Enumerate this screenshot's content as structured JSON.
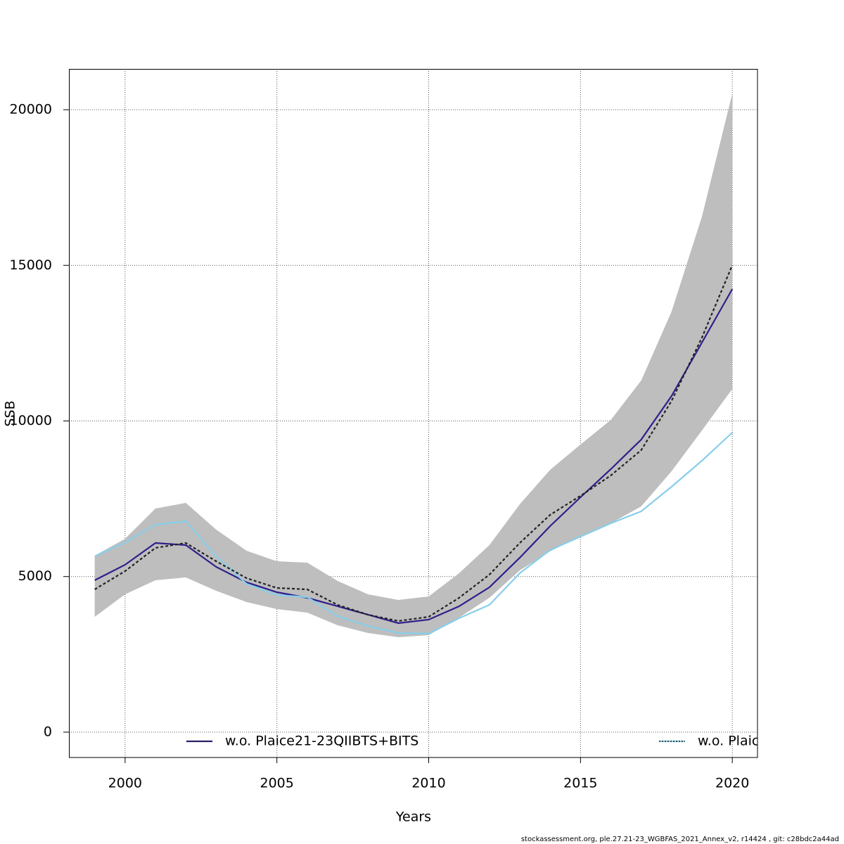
{
  "chart_data": {
    "type": "line",
    "x_label": "Years",
    "y_label": "SSB",
    "footer": "stockassessment.org, ple.27.21-23_WGBFAS_2021_Annex_v2, r14424 , git: c28bdc2a44ad",
    "x": [
      1999,
      2000,
      2001,
      2002,
      2003,
      2004,
      2005,
      2006,
      2007,
      2008,
      2009,
      2010,
      2011,
      2012,
      2013,
      2014,
      2015,
      2016,
      2017,
      2018,
      2019,
      2020
    ],
    "xlim": [
      1998.15,
      2020.83
    ],
    "xticks": [
      2000,
      2005,
      2010,
      2015,
      2020
    ],
    "ylim": [
      -814,
      21311
    ],
    "yticks": [
      0,
      5000,
      10000,
      15000,
      20000
    ],
    "grid": true,
    "band": {
      "color": "#bebebe",
      "upper": [
        5672,
        6215,
        7186,
        7367,
        6508,
        5830,
        5491,
        5446,
        4859,
        4429,
        4249,
        4362,
        5107,
        6011,
        7322,
        8429,
        9243,
        10034,
        11299,
        13514,
        16565,
        20520
      ],
      "lower": [
        3706,
        4429,
        4881,
        4972,
        4542,
        4181,
        3955,
        3842,
        3435,
        3186,
        3051,
        3119,
        3684,
        4316,
        5198,
        5808,
        6305,
        6712,
        7254,
        8384,
        9695,
        11028
      ]
    },
    "base": {
      "color": "#222222",
      "dash": true,
      "values": [
        4588,
        5175,
        5921,
        6079,
        5491,
        4949,
        4633,
        4588,
        4090,
        3774,
        3571,
        3706,
        4316,
        5062,
        6079,
        6983,
        7593,
        8249,
        9062,
        10644,
        12678,
        15006
      ]
    },
    "series": [
      {
        "name": "w.o. Plaice21-23QIIBTS+BITS",
        "color": "#2e1f8a",
        "values": [
          4881,
          5379,
          6079,
          6011,
          5311,
          4814,
          4497,
          4316,
          4045,
          3774,
          3503,
          3616,
          4045,
          4655,
          5605,
          6621,
          7548,
          8452,
          9401,
          10802,
          12520,
          14237
        ]
      },
      {
        "name": "w.o. Plaic",
        "color": "#87ceeb",
        "values": [
          5650,
          6102,
          6667,
          6780,
          5650,
          4768,
          4407,
          4339,
          3729,
          3412,
          3186,
          3164,
          3661,
          4090,
          5107,
          5853,
          6282,
          6712,
          7096,
          7887,
          8723,
          9627
        ]
      }
    ]
  }
}
